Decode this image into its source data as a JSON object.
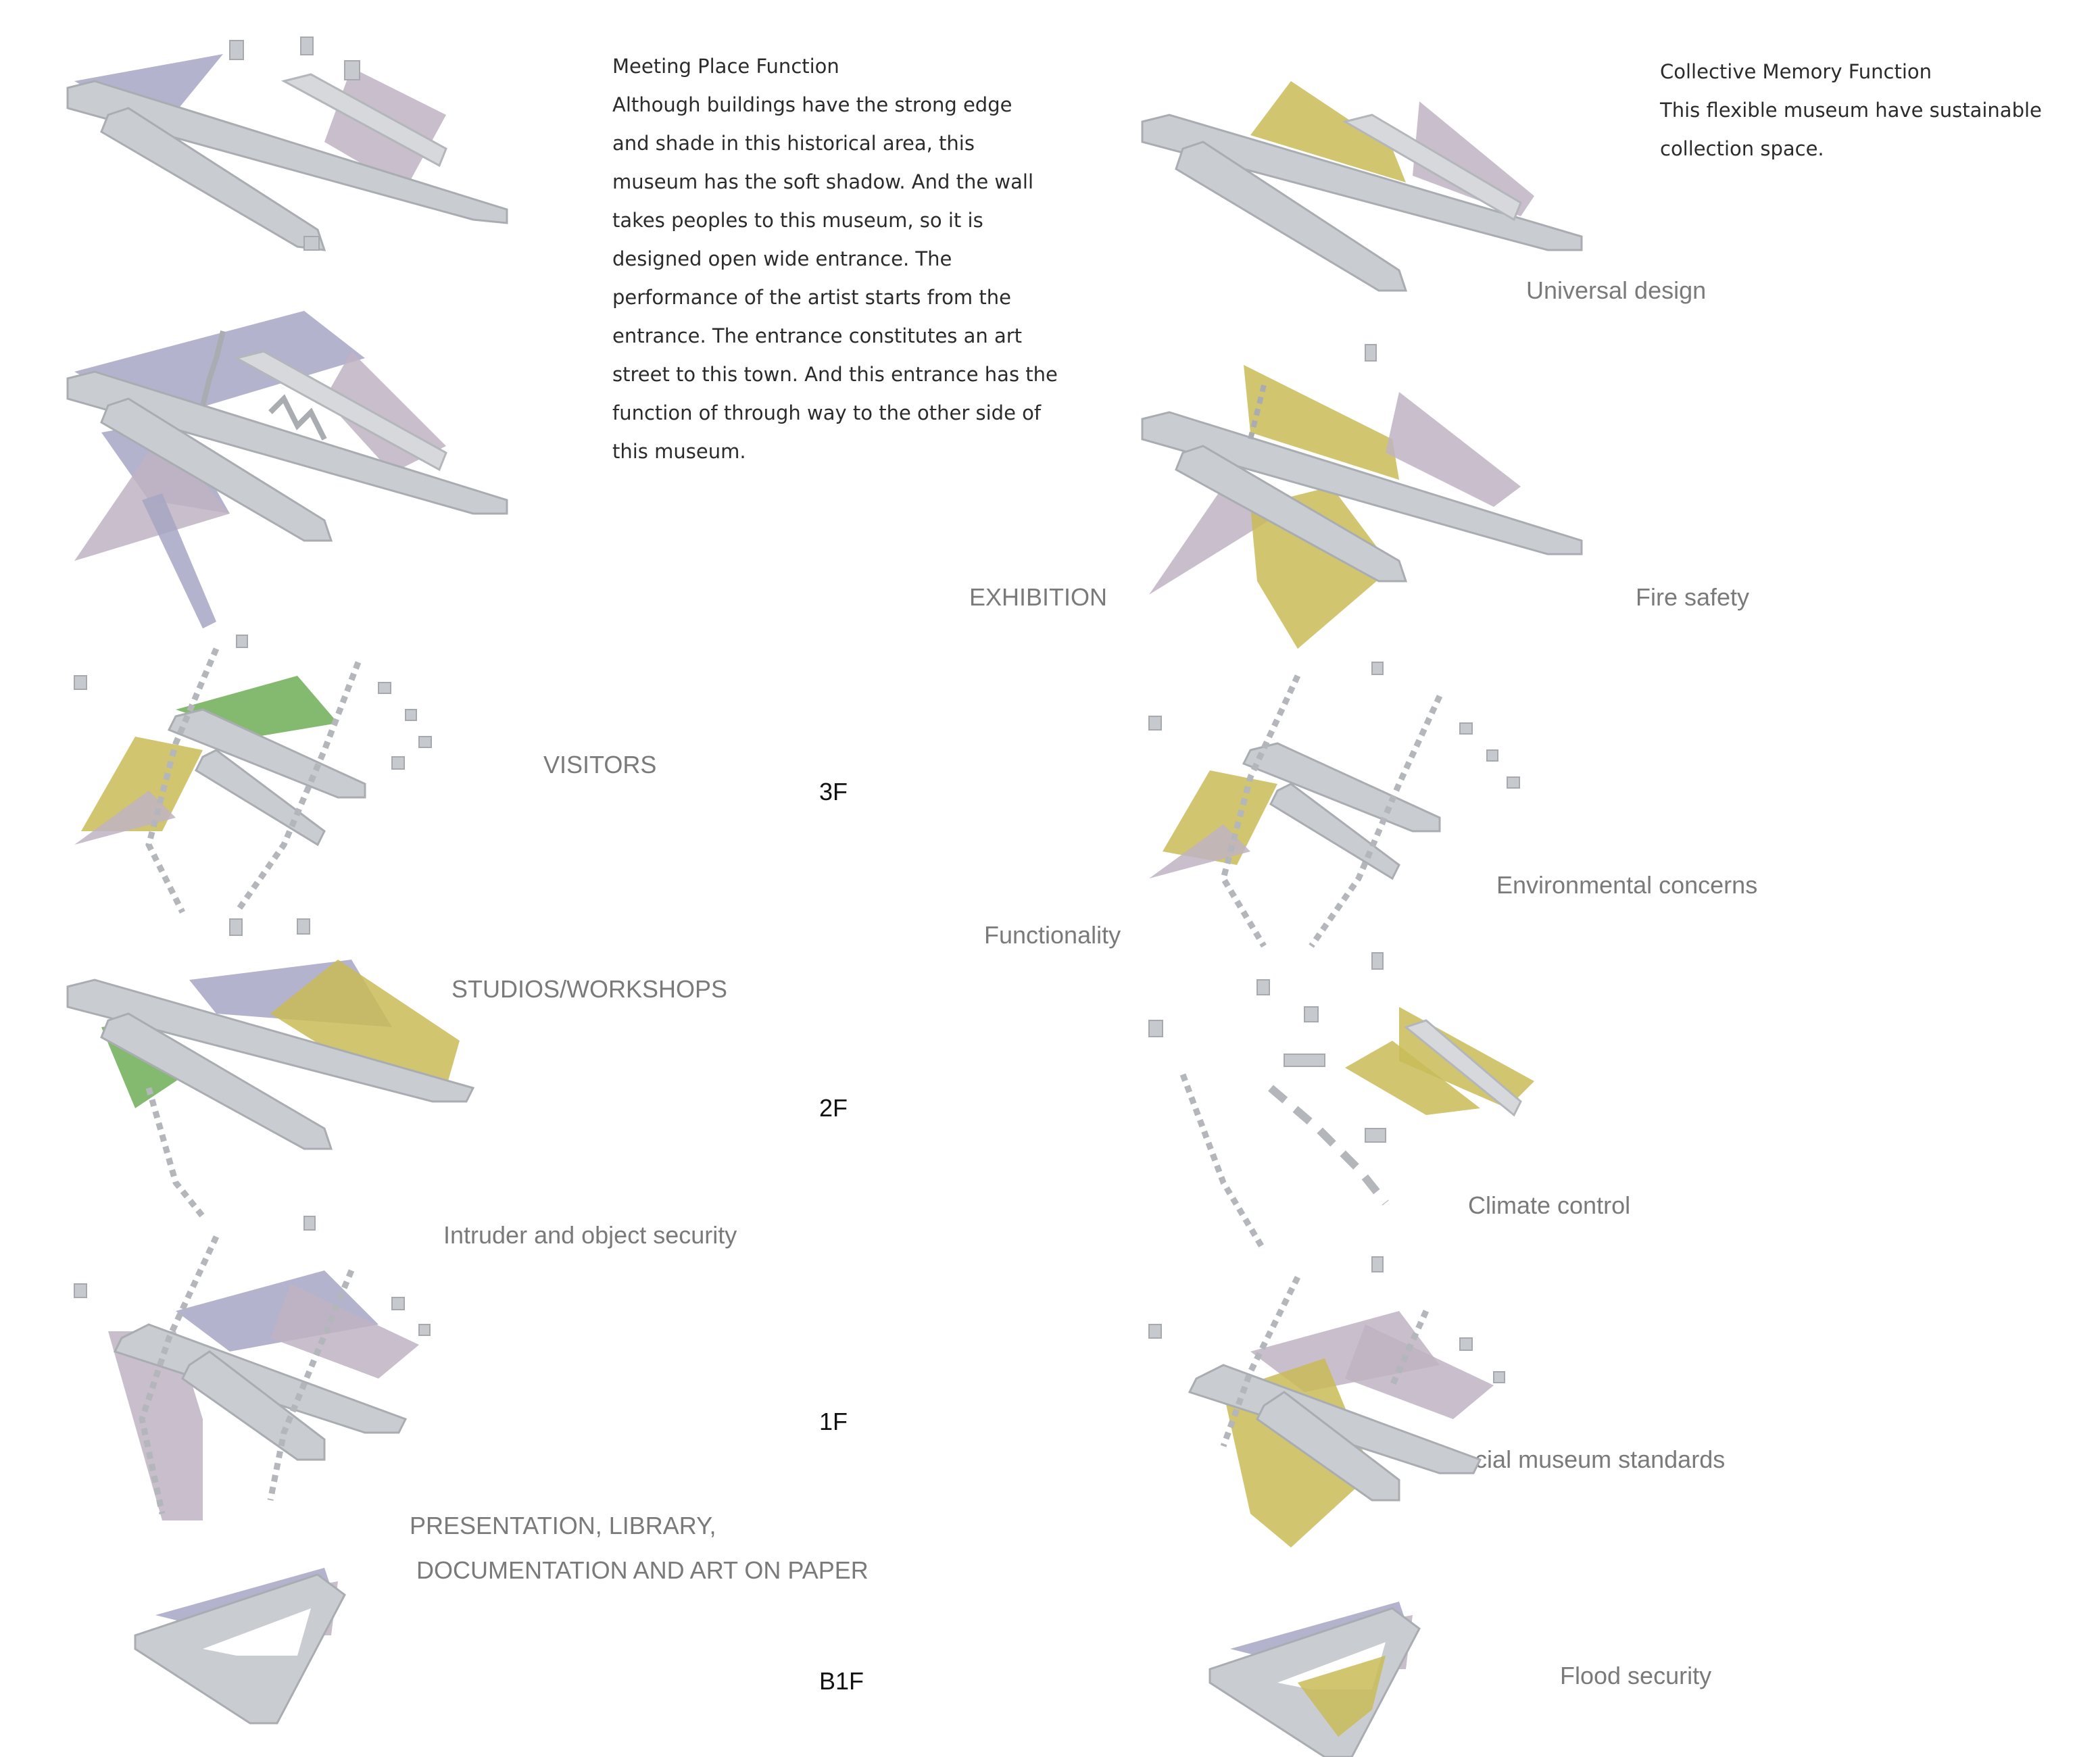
{
  "left_text": {
    "heading": "Meeting Place Function",
    "lines": [
      "Although buildings have the strong edge",
      "and shade in this historical area, this",
      "museum has the soft shadow. And the wall",
      "takes peoples to this museum, so it is",
      "designed open wide entrance. The",
      "performance of the artist starts from the",
      "entrance. The entrance constitutes an art",
      "street to this town. And this entrance has the",
      "function of through way to the other side of",
      "this museum."
    ]
  },
  "right_text": {
    "heading": "Collective Memory Function",
    "lines": [
      "This flexible museum have sustainable",
      "collection space."
    ]
  },
  "left_labels": {
    "visitors": "VISITORS",
    "studios": "STUDIOS/WORKSHOPS",
    "intruder": "Intruder and object security",
    "presentation_1": "PRESENTATION, LIBRARY,",
    "presentation_2": "DOCUMENTATION AND ART ON PAPER"
  },
  "center_labels": {
    "exhibition": "EXHIBITION",
    "functionality": "Functionality"
  },
  "floors": {
    "f3": "3F",
    "f2": "2F",
    "f1": "1F",
    "b1": "B1F"
  },
  "right_labels": {
    "universal": "Universal design",
    "fire": "Fire safety",
    "environmental": "Environmental concerns",
    "climate": "Climate control",
    "special": "Special museum standards",
    "flood": "Flood security"
  },
  "colors": {
    "wall": "#c9ccd0",
    "plane_blue": "#a7a6c4",
    "plane_pink": "#bfb3c2",
    "plane_yellow": "#c9bb57",
    "plane_green": "#6fae56",
    "label_gray": "#7a7a7a"
  }
}
